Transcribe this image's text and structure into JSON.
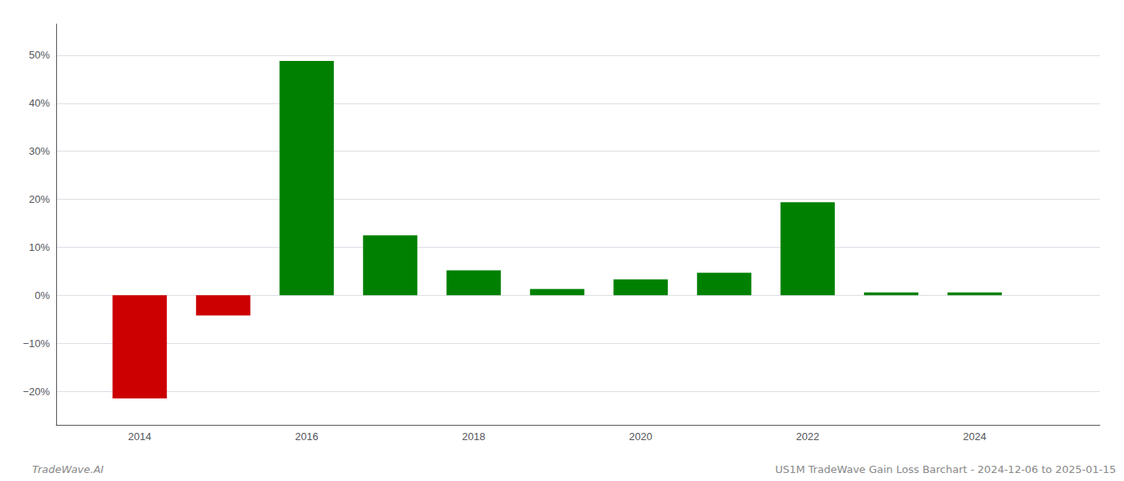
{
  "chart_data": {
    "type": "bar",
    "x": [
      2014,
      2015,
      2016,
      2017,
      2018,
      2019,
      2020,
      2021,
      2022,
      2023,
      2024
    ],
    "values": [
      -0.215,
      -0.042,
      0.488,
      0.125,
      0.052,
      0.013,
      0.033,
      0.047,
      0.194,
      0.006,
      0.006
    ],
    "colors": [
      "#cc0000",
      "#cc0000",
      "#008000",
      "#008000",
      "#008000",
      "#008000",
      "#008000",
      "#008000",
      "#008000",
      "#008000",
      "#008000"
    ],
    "xlim": [
      2013.0,
      2025.5
    ],
    "xticks": [
      2014,
      2016,
      2018,
      2020,
      2022,
      2024
    ],
    "ylim": [
      -0.27,
      0.565
    ],
    "yticks": [
      {
        "value": -0.2,
        "label": "−20%"
      },
      {
        "value": -0.1,
        "label": "−10%"
      },
      {
        "value": 0.0,
        "label": "0%"
      },
      {
        "value": 0.1,
        "label": "10%"
      },
      {
        "value": 0.2,
        "label": "20%"
      },
      {
        "value": 0.3,
        "label": "30%"
      },
      {
        "value": 0.4,
        "label": "40%"
      },
      {
        "value": 0.5,
        "label": "50%"
      }
    ],
    "grid": true,
    "annotations": [
      "TradeWave.AI",
      "US1M TradeWave Gain Loss Barchart - 2024-12-06 to 2025-01-15"
    ]
  }
}
